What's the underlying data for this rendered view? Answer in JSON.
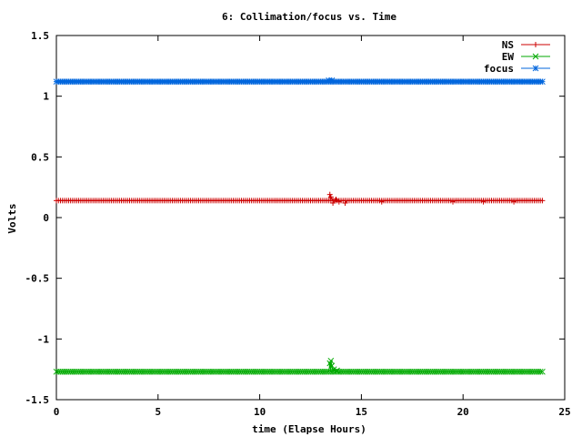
{
  "chart_data": {
    "type": "line",
    "title": "6: Collimation/focus vs. Time",
    "xlabel": "time (Elapse Hours)",
    "ylabel": "Volts",
    "xlim": [
      0,
      25
    ],
    "ylim": [
      -1.5,
      1.5
    ],
    "xticks": [
      0,
      5,
      10,
      15,
      20,
      25
    ],
    "xtick_labels": [
      "0",
      "5",
      "10",
      "15",
      "20",
      "25"
    ],
    "yticks": [
      -1.5,
      -1,
      -0.5,
      0,
      0.5,
      1,
      1.5
    ],
    "ytick_labels": [
      "-1.5",
      "-1",
      "-0.5",
      "0",
      "0.5",
      "1",
      "1.5"
    ],
    "grid": false,
    "legend_position": "top-right",
    "x_range": [
      0,
      23.9
    ],
    "series": [
      {
        "name": "NS",
        "color": "#cc0000",
        "marker": "plus",
        "baseline": 0.14,
        "points": [
          [
            13.45,
            0.19
          ],
          [
            13.5,
            0.17
          ],
          [
            13.6,
            0.12
          ],
          [
            13.75,
            0.15
          ],
          [
            13.9,
            0.13
          ],
          [
            14.2,
            0.12
          ],
          [
            16.0,
            0.13
          ],
          [
            19.5,
            0.13
          ],
          [
            21.0,
            0.13
          ],
          [
            22.5,
            0.13
          ]
        ]
      },
      {
        "name": "EW",
        "color": "#00aa00",
        "marker": "x",
        "baseline": -1.27,
        "points": [
          [
            13.45,
            -1.2
          ],
          [
            13.5,
            -1.18
          ],
          [
            13.55,
            -1.22
          ],
          [
            13.65,
            -1.25
          ],
          [
            13.8,
            -1.26
          ]
        ]
      },
      {
        "name": "focus",
        "color": "#0066dd",
        "marker": "star",
        "baseline": 1.12,
        "points": [
          [
            13.4,
            1.13
          ],
          [
            13.55,
            1.13
          ]
        ]
      }
    ]
  }
}
